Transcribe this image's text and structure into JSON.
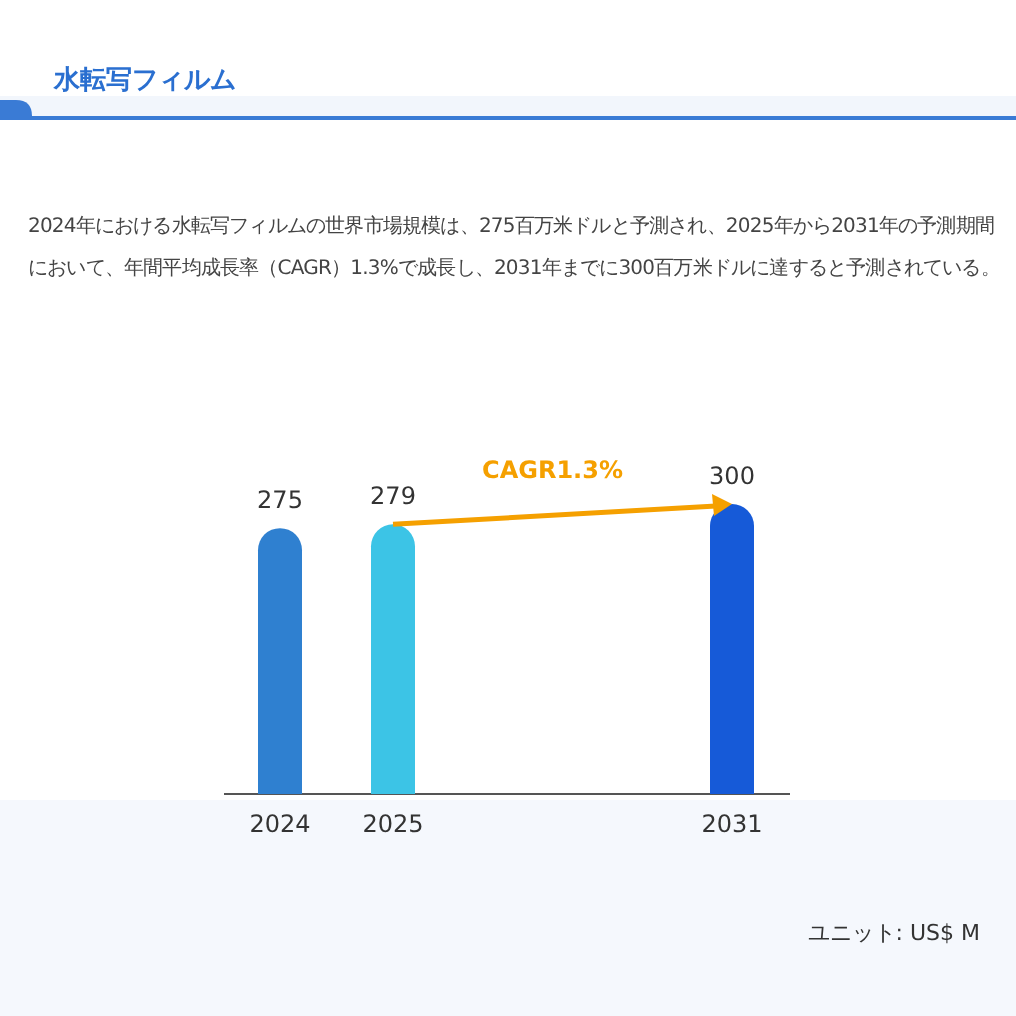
{
  "chart_data": {
    "type": "bar",
    "title": "水転写フィルム",
    "subtitle": "2024年における水転写フィルムの世界市場規模は、275百万米ドルと予測され、2025年から2031年の予測期間において、年間平均成長率（CAGR）1.3%で成長し、2031年までに300百万米ドルに達すると予測されている。",
    "categories": [
      "2024",
      "2025",
      null,
      null,
      "2031"
    ],
    "values": [
      275,
      279,
      null,
      null,
      300
    ],
    "colors": [
      "#2f80d0",
      "#3cc4e6",
      null,
      null,
      "#165ad8"
    ],
    "data_labels": true,
    "annotations": [
      "CAGR1.3%",
      "ユニット: US$ M"
    ]
  }
}
